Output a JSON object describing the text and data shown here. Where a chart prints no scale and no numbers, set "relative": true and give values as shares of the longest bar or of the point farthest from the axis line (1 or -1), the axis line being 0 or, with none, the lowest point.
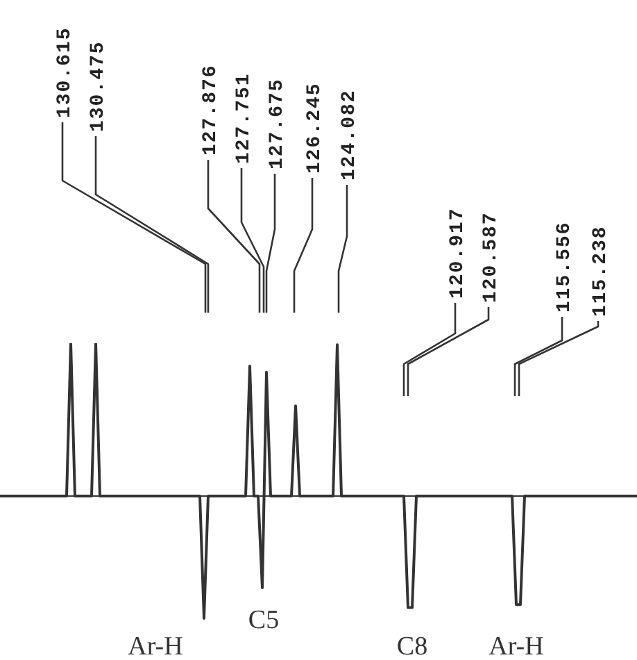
{
  "chart_data": {
    "type": "line",
    "relative": true,
    "tick_labels": false,
    "categories": [
      null,
      null,
      null,
      null,
      null,
      null,
      null,
      null,
      null,
      null,
      null,
      null,
      null,
      null,
      null,
      null,
      null,
      null,
      null,
      null,
      null,
      null,
      null,
      null,
      null,
      null,
      null,
      null,
      null,
      null,
      null,
      null,
      null,
      null,
      null,
      null,
      null,
      null,
      null,
      null,
      null,
      null,
      null,
      null,
      null,
      null,
      null,
      null,
      null,
      null,
      null,
      null,
      null,
      null,
      null,
      null,
      null,
      null,
      null,
      null,
      null,
      null,
      null,
      null,
      null,
      null,
      null,
      null,
      null,
      null,
      null,
      null,
      null,
      null,
      null,
      null,
      null,
      null,
      null,
      null,
      null,
      null,
      null,
      null,
      null,
      null,
      null,
      null,
      null,
      null,
      null,
      null,
      null,
      null,
      null,
      null,
      null,
      null,
      null,
      null,
      null,
      null,
      null,
      null,
      null,
      null,
      null,
      null,
      null,
      null,
      null,
      null,
      null,
      null,
      null,
      null,
      null,
      null,
      null,
      null,
      null,
      null,
      null,
      null,
      null,
      null,
      null,
      null,
      null,
      null,
      null,
      null,
      null,
      null,
      null,
      null,
      null,
      null,
      null,
      null,
      null,
      null,
      null,
      null,
      null,
      null,
      null,
      null,
      null,
      null,
      null,
      null,
      null,
      null
    ],
    "series": [
      {
        "color": "#333333",
        "values": [
          0,
          0,
          0,
          0,
          0,
          0,
          0,
          0,
          0,
          0,
          0,
          0,
          0,
          0,
          0,
          0,
          0,
          1,
          0,
          0,
          0,
          0,
          0,
          1,
          0,
          0,
          0,
          0,
          0,
          0,
          0,
          0,
          0,
          0,
          0,
          0,
          0,
          0,
          0,
          0,
          0,
          0,
          0,
          0,
          0,
          0,
          0,
          0,
          0,
          -0.8,
          0,
          0,
          0,
          0,
          0,
          0,
          0,
          0,
          0,
          0,
          0.85,
          0,
          0,
          -0.6,
          0.81,
          0,
          0,
          0,
          0,
          0,
          0,
          0.59,
          0,
          0,
          0,
          0,
          0,
          0,
          0,
          0,
          0,
          0.99,
          0,
          0,
          0,
          0,
          0,
          0,
          0,
          0,
          0,
          0,
          0,
          0,
          0,
          0,
          0,
          0,
          -0.73,
          -0.73,
          0,
          0,
          0,
          0,
          0,
          0,
          0,
          0,
          0,
          0,
          0,
          0,
          0,
          0,
          0,
          0,
          0,
          0,
          0,
          0,
          0,
          0,
          0,
          0,
          -0.71,
          -0.71,
          0,
          0,
          0,
          0,
          0,
          0,
          0,
          0,
          0,
          0,
          0,
          0,
          0,
          0,
          0,
          0,
          0,
          0,
          0,
          0,
          0,
          0,
          0,
          0,
          0,
          0,
          0,
          0
        ]
      }
    ],
    "annotations": [
      "130.615",
      "130.475",
      "127.876",
      "127.751",
      "127.675",
      "126.245",
      "124.082",
      "120.917",
      "120.587",
      "115.556",
      "115.238",
      "Ar-H",
      "C5",
      "C8",
      "Ar-H"
    ]
  }
}
